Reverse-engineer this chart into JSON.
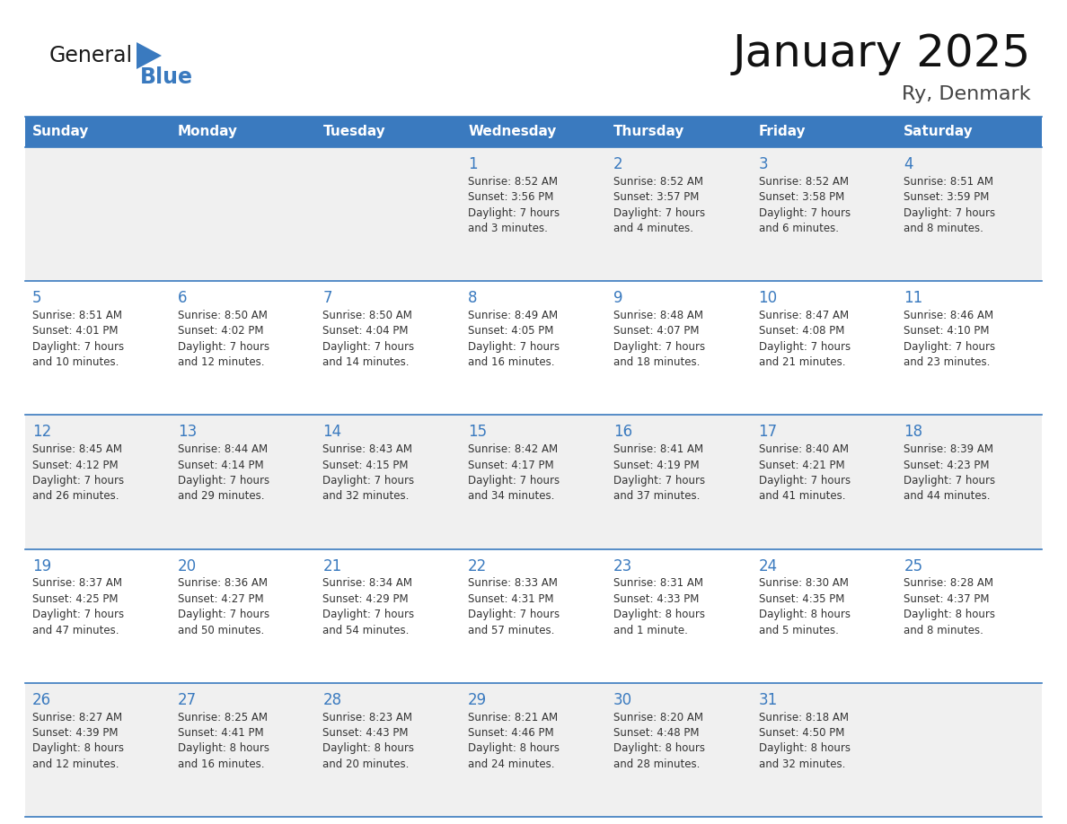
{
  "title": "January 2025",
  "subtitle": "Ry, Denmark",
  "days_of_week": [
    "Sunday",
    "Monday",
    "Tuesday",
    "Wednesday",
    "Thursday",
    "Friday",
    "Saturday"
  ],
  "header_bg": "#3a7abf",
  "header_text": "#ffffff",
  "row_bg_odd": "#f0f0f0",
  "row_bg_even": "#ffffff",
  "cell_border": "#3a7abf",
  "day_number_color": "#3a7abf",
  "text_color": "#333333",
  "logo_general_color": "#1a1a1a",
  "logo_blue_color": "#3a7abf",
  "calendar_data": [
    [
      {
        "day": "",
        "sunrise": "",
        "sunset": "",
        "daylight": ""
      },
      {
        "day": "",
        "sunrise": "",
        "sunset": "",
        "daylight": ""
      },
      {
        "day": "",
        "sunrise": "",
        "sunset": "",
        "daylight": ""
      },
      {
        "day": "1",
        "sunrise": "8:52 AM",
        "sunset": "3:56 PM",
        "daylight": "7 hours and 3 minutes."
      },
      {
        "day": "2",
        "sunrise": "8:52 AM",
        "sunset": "3:57 PM",
        "daylight": "7 hours and 4 minutes."
      },
      {
        "day": "3",
        "sunrise": "8:52 AM",
        "sunset": "3:58 PM",
        "daylight": "7 hours and 6 minutes."
      },
      {
        "day": "4",
        "sunrise": "8:51 AM",
        "sunset": "3:59 PM",
        "daylight": "7 hours and 8 minutes."
      }
    ],
    [
      {
        "day": "5",
        "sunrise": "8:51 AM",
        "sunset": "4:01 PM",
        "daylight": "7 hours and 10 minutes."
      },
      {
        "day": "6",
        "sunrise": "8:50 AM",
        "sunset": "4:02 PM",
        "daylight": "7 hours and 12 minutes."
      },
      {
        "day": "7",
        "sunrise": "8:50 AM",
        "sunset": "4:04 PM",
        "daylight": "7 hours and 14 minutes."
      },
      {
        "day": "8",
        "sunrise": "8:49 AM",
        "sunset": "4:05 PM",
        "daylight": "7 hours and 16 minutes."
      },
      {
        "day": "9",
        "sunrise": "8:48 AM",
        "sunset": "4:07 PM",
        "daylight": "7 hours and 18 minutes."
      },
      {
        "day": "10",
        "sunrise": "8:47 AM",
        "sunset": "4:08 PM",
        "daylight": "7 hours and 21 minutes."
      },
      {
        "day": "11",
        "sunrise": "8:46 AM",
        "sunset": "4:10 PM",
        "daylight": "7 hours and 23 minutes."
      }
    ],
    [
      {
        "day": "12",
        "sunrise": "8:45 AM",
        "sunset": "4:12 PM",
        "daylight": "7 hours and 26 minutes."
      },
      {
        "day": "13",
        "sunrise": "8:44 AM",
        "sunset": "4:14 PM",
        "daylight": "7 hours and 29 minutes."
      },
      {
        "day": "14",
        "sunrise": "8:43 AM",
        "sunset": "4:15 PM",
        "daylight": "7 hours and 32 minutes."
      },
      {
        "day": "15",
        "sunrise": "8:42 AM",
        "sunset": "4:17 PM",
        "daylight": "7 hours and 34 minutes."
      },
      {
        "day": "16",
        "sunrise": "8:41 AM",
        "sunset": "4:19 PM",
        "daylight": "7 hours and 37 minutes."
      },
      {
        "day": "17",
        "sunrise": "8:40 AM",
        "sunset": "4:21 PM",
        "daylight": "7 hours and 41 minutes."
      },
      {
        "day": "18",
        "sunrise": "8:39 AM",
        "sunset": "4:23 PM",
        "daylight": "7 hours and 44 minutes."
      }
    ],
    [
      {
        "day": "19",
        "sunrise": "8:37 AM",
        "sunset": "4:25 PM",
        "daylight": "7 hours and 47 minutes."
      },
      {
        "day": "20",
        "sunrise": "8:36 AM",
        "sunset": "4:27 PM",
        "daylight": "7 hours and 50 minutes."
      },
      {
        "day": "21",
        "sunrise": "8:34 AM",
        "sunset": "4:29 PM",
        "daylight": "7 hours and 54 minutes."
      },
      {
        "day": "22",
        "sunrise": "8:33 AM",
        "sunset": "4:31 PM",
        "daylight": "7 hours and 57 minutes."
      },
      {
        "day": "23",
        "sunrise": "8:31 AM",
        "sunset": "4:33 PM",
        "daylight": "8 hours and 1 minute."
      },
      {
        "day": "24",
        "sunrise": "8:30 AM",
        "sunset": "4:35 PM",
        "daylight": "8 hours and 5 minutes."
      },
      {
        "day": "25",
        "sunrise": "8:28 AM",
        "sunset": "4:37 PM",
        "daylight": "8 hours and 8 minutes."
      }
    ],
    [
      {
        "day": "26",
        "sunrise": "8:27 AM",
        "sunset": "4:39 PM",
        "daylight": "8 hours and 12 minutes."
      },
      {
        "day": "27",
        "sunrise": "8:25 AM",
        "sunset": "4:41 PM",
        "daylight": "8 hours and 16 minutes."
      },
      {
        "day": "28",
        "sunrise": "8:23 AM",
        "sunset": "4:43 PM",
        "daylight": "8 hours and 20 minutes."
      },
      {
        "day": "29",
        "sunrise": "8:21 AM",
        "sunset": "4:46 PM",
        "daylight": "8 hours and 24 minutes."
      },
      {
        "day": "30",
        "sunrise": "8:20 AM",
        "sunset": "4:48 PM",
        "daylight": "8 hours and 28 minutes."
      },
      {
        "day": "31",
        "sunrise": "8:18 AM",
        "sunset": "4:50 PM",
        "daylight": "8 hours and 32 minutes."
      },
      {
        "day": "",
        "sunrise": "",
        "sunset": "",
        "daylight": ""
      }
    ]
  ]
}
